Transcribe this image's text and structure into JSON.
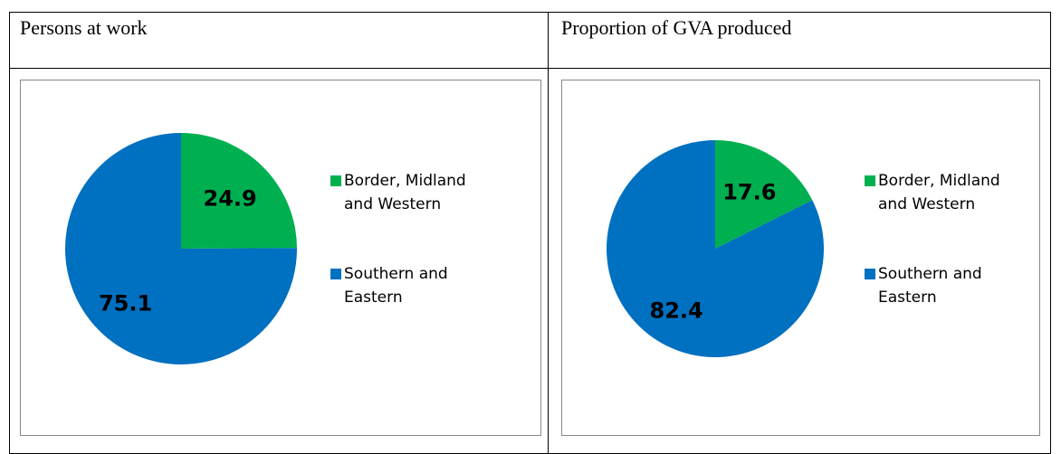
{
  "chart_data": [
    {
      "type": "pie",
      "title": "Persons at work",
      "categories": [
        "Border, Midland and Western",
        "Southern and Eastern"
      ],
      "values": [
        24.9,
        75.1
      ],
      "colors": [
        "#00b050",
        "#0070c0"
      ]
    },
    {
      "type": "pie",
      "title": "Proportion of GVA produced",
      "categories": [
        "Border, Midland and Western",
        "Southern and Eastern"
      ],
      "values": [
        17.6,
        82.4
      ],
      "colors": [
        "#00b050",
        "#0070c0"
      ]
    }
  ]
}
